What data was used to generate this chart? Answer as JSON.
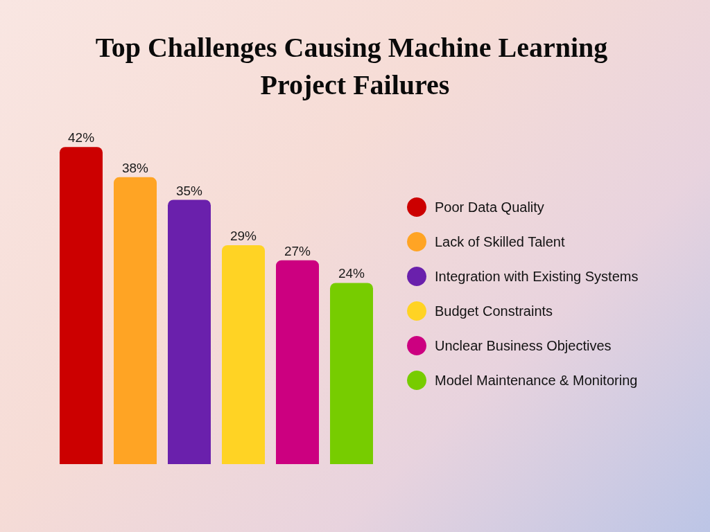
{
  "chart_data": {
    "type": "bar",
    "title": "Top Challenges Causing Machine Learning Project Failures",
    "categories": [
      null
    ],
    "series": [
      {
        "name": "Poor Data Quality",
        "color": "#cc0000",
        "values": [
          42
        ],
        "value_labels": [
          "42%"
        ]
      },
      {
        "name": "Lack of Skilled Talent",
        "color": "#ffa424",
        "values": [
          38
        ],
        "value_labels": [
          "38%"
        ]
      },
      {
        "name": "Integration with Existing Systems",
        "color": "#6a20ac",
        "values": [
          35
        ],
        "value_labels": [
          "35%"
        ]
      },
      {
        "name": "Budget Constraints",
        "color": "#ffd324",
        "values": [
          29
        ],
        "value_labels": [
          "29%"
        ]
      },
      {
        "name": "Unclear Business Objectives",
        "color": "#cc0080",
        "values": [
          27
        ],
        "value_labels": [
          "27%"
        ]
      },
      {
        "name": "Model Maintenance & Monitoring",
        "color": "#77cc00",
        "values": [
          24
        ],
        "value_labels": [
          "24%"
        ]
      }
    ],
    "legend": "right",
    "grid": false,
    "tick_labels": false
  }
}
